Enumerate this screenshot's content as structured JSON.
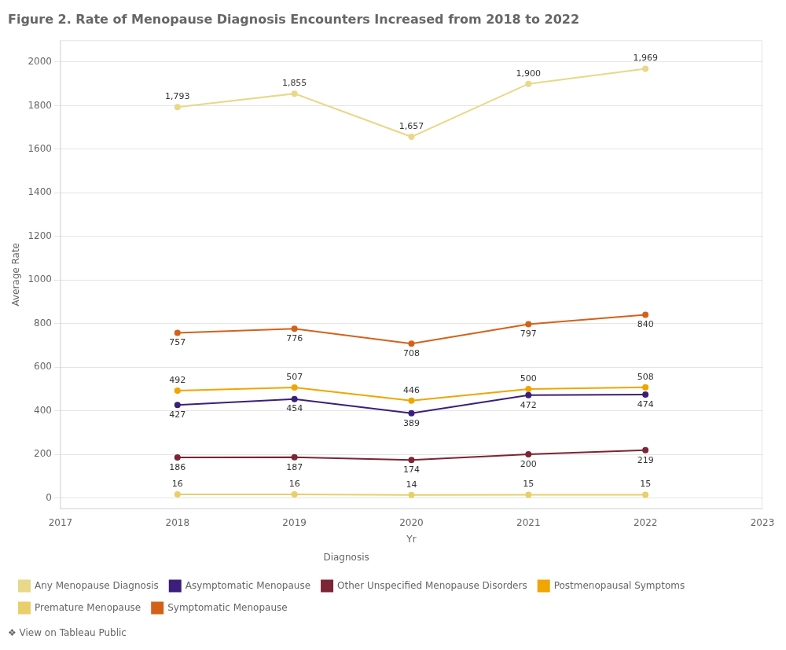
{
  "chart_data": {
    "type": "line",
    "title": "Figure 2. Rate of Menopause Diagnosis Encounters Increased from 2018 to 2022",
    "xlabel": "Yr",
    "ylabel": "Average Rate",
    "footer": "❖ View on Tableau Public",
    "x": [
      2018,
      2019,
      2020,
      2021,
      2022
    ],
    "xlim": [
      2017,
      2023
    ],
    "xticks": [
      2017,
      2018,
      2019,
      2020,
      2021,
      2022,
      2023
    ],
    "ylim": [
      -50,
      2100
    ],
    "yticks": [
      0,
      200,
      400,
      600,
      800,
      1000,
      1200,
      1400,
      1600,
      1800,
      2000
    ],
    "grid": "y",
    "legend": "bottom",
    "legend_title": "Diagnosis",
    "data_labels": true,
    "marker": "circle",
    "series": [
      {
        "name": "Any Menopause Diagnosis",
        "color": "#e8d888",
        "values": [
          1793,
          1855,
          1657,
          1900,
          1969
        ],
        "value_labels": [
          "1,793",
          "1,855",
          "1,657",
          "1,900",
          "1,969"
        ]
      },
      {
        "name": "Asymptomatic Menopause",
        "color": "#3b1f7a",
        "values": [
          427,
          454,
          389,
          472,
          474
        ]
      },
      {
        "name": "Other Unspecified Menopause Disorders",
        "color": "#7b2535",
        "values": [
          186,
          187,
          174,
          200,
          219
        ]
      },
      {
        "name": "Postmenopausal Symptoms",
        "color": "#f0a500",
        "values": [
          492,
          507,
          446,
          500,
          508
        ]
      },
      {
        "name": "Premature Menopause",
        "color": "#e8cf6a",
        "values": [
          16,
          16,
          14,
          15,
          15
        ]
      },
      {
        "name": "Symptomatic Menopause",
        "color": "#d4611a",
        "values": [
          757,
          776,
          708,
          797,
          840
        ]
      }
    ]
  }
}
